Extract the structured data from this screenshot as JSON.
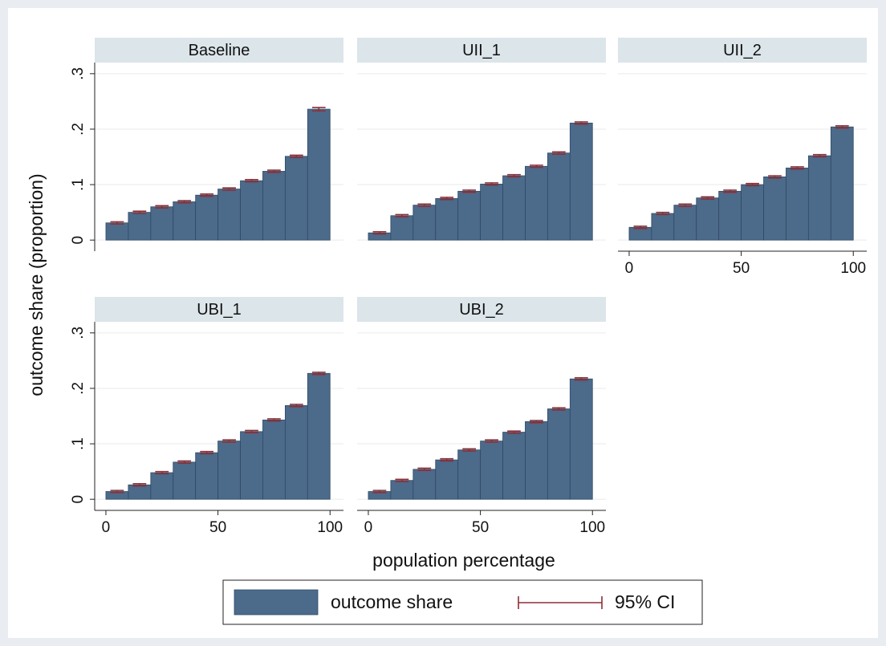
{
  "chart_data": {
    "type": "bar",
    "y_label": "outcome share (proportion)",
    "x_label": "population percentage",
    "bins": [
      0,
      10,
      20,
      30,
      40,
      50,
      60,
      70,
      80,
      90,
      100
    ],
    "xlim": [
      -5,
      106
    ],
    "xticks": [
      0,
      50,
      100
    ],
    "ylim": [
      -0.02,
      0.32
    ],
    "yticks": [
      0,
      {
        "value": 0.1,
        "label": ".1"
      },
      {
        "value": 0.2,
        "label": ".2"
      },
      {
        "value": 0.3,
        "label": ".3"
      }
    ],
    "grid": true,
    "bar_color": "#4c6a8a",
    "ci_color": "#8e2f36",
    "legend_items": [
      {
        "name": "outcome share",
        "color": "#4c6a8a"
      },
      {
        "name": "95% CI",
        "color": "#8e2f36"
      }
    ],
    "panels": [
      {
        "title": "Baseline",
        "values": [
          0.031,
          0.05,
          0.06,
          0.069,
          0.081,
          0.092,
          0.107,
          0.124,
          0.151,
          0.236
        ],
        "errors": [
          0.002,
          0.002,
          0.002,
          0.002,
          0.002,
          0.002,
          0.002,
          0.002,
          0.002,
          0.003
        ]
      },
      {
        "title": "UII_1",
        "values": [
          0.013,
          0.044,
          0.063,
          0.075,
          0.088,
          0.101,
          0.116,
          0.133,
          0.157,
          0.211
        ],
        "errors": [
          0.002,
          0.002,
          0.002,
          0.002,
          0.002,
          0.002,
          0.002,
          0.002,
          0.002,
          0.002
        ]
      },
      {
        "title": "UII_2",
        "values": [
          0.023,
          0.048,
          0.063,
          0.076,
          0.088,
          0.1,
          0.114,
          0.13,
          0.152,
          0.204
        ],
        "errors": [
          0.002,
          0.002,
          0.002,
          0.002,
          0.002,
          0.002,
          0.002,
          0.002,
          0.002,
          0.002
        ]
      },
      {
        "title": "UBI_1",
        "values": [
          0.014,
          0.026,
          0.048,
          0.067,
          0.084,
          0.105,
          0.122,
          0.143,
          0.169,
          0.227
        ],
        "errors": [
          0.002,
          0.002,
          0.002,
          0.002,
          0.002,
          0.002,
          0.002,
          0.002,
          0.002,
          0.002
        ]
      },
      {
        "title": "UBI_2",
        "values": [
          0.014,
          0.034,
          0.054,
          0.071,
          0.089,
          0.105,
          0.121,
          0.14,
          0.163,
          0.217
        ],
        "errors": [
          0.002,
          0.002,
          0.002,
          0.002,
          0.002,
          0.002,
          0.002,
          0.002,
          0.002,
          0.002
        ]
      }
    ]
  }
}
